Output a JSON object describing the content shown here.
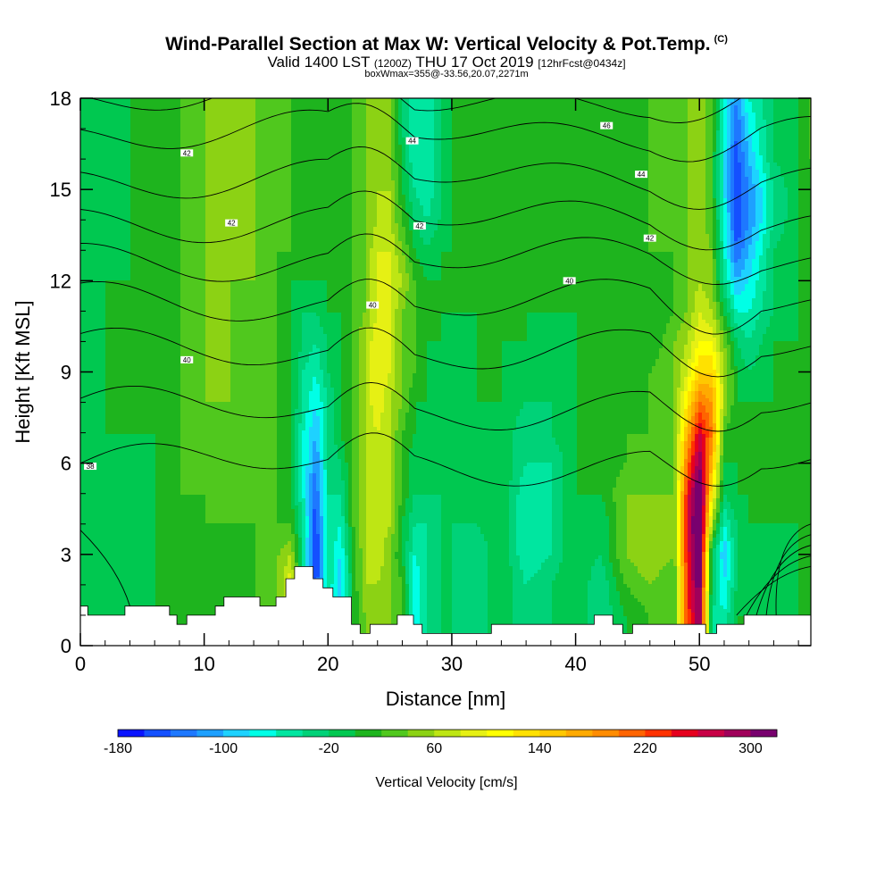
{
  "header": {
    "title": "Wind-Parallel Section at Max W: Vertical Velocity & Pot.Temp.",
    "copyright": "(C)",
    "valid_prefix": "Valid 1400 LST",
    "valid_utc": "(1200Z)",
    "valid_date": "THU 17 Oct 2019",
    "forecast": "[12hrFcst@0434z]",
    "boxmax": "boxWmax=355@-33.56,20.07,2271m"
  },
  "chart_data": {
    "type": "heatmap",
    "xlabel": "Distance [nm]",
    "ylabel": "Height [Kft MSL]",
    "xlim": [
      0,
      59
    ],
    "ylim": [
      0,
      18
    ],
    "x_ticks": [
      0,
      10,
      20,
      30,
      40,
      50
    ],
    "y_ticks": [
      0,
      3,
      6,
      9,
      12,
      15,
      18
    ],
    "colorbar": {
      "label": "Vertical Velocity [cm/s]",
      "min": -180,
      "max": 320,
      "step": 20,
      "tick_labels": [
        "-180",
        "-100",
        "-20",
        "60",
        "140",
        "220",
        "300"
      ],
      "tick_values": [
        -180,
        -100,
        -20,
        60,
        140,
        220,
        300
      ],
      "colors": [
        "#0a14ff",
        "#1450ff",
        "#1e78ff",
        "#1ea0ff",
        "#1ed2ff",
        "#00ffe6",
        "#00e6a0",
        "#00d278",
        "#00c850",
        "#1eb41e",
        "#50c81e",
        "#8cd214",
        "#bee614",
        "#e6f014",
        "#ffff00",
        "#ffe100",
        "#ffc800",
        "#ffaa00",
        "#ff8c00",
        "#ff6400",
        "#ff3200",
        "#e6001e",
        "#c80046",
        "#a0005a",
        "#78006e"
      ]
    },
    "vertical_velocity_cm_s": {
      "x_nm": [
        0,
        2,
        4,
        6,
        8,
        10,
        12,
        14,
        16,
        17,
        18,
        19,
        20,
        21,
        22,
        23,
        24,
        25,
        26,
        27,
        28,
        29,
        30,
        32,
        34,
        36,
        38,
        40,
        42,
        44,
        46,
        48,
        49,
        50,
        51,
        52,
        53,
        54,
        56,
        58,
        59
      ],
      "z_kft": [
        0,
        1,
        2,
        3,
        4,
        5,
        6,
        7,
        8,
        9,
        10,
        11,
        12,
        13,
        14,
        15,
        16,
        17,
        18
      ],
      "values": [
        [
          -20,
          0,
          -20,
          0,
          0,
          20,
          0,
          20,
          40,
          60,
          -60,
          -140,
          -40,
          -100,
          0,
          40,
          60,
          40,
          20,
          -80,
          -40,
          -20,
          -20,
          -40,
          0,
          -40,
          -20,
          0,
          -40,
          0,
          20,
          20,
          220,
          300,
          -40,
          -60,
          0,
          0,
          -20,
          0,
          0
        ],
        [
          -20,
          0,
          -20,
          0,
          0,
          20,
          0,
          20,
          40,
          60,
          -40,
          -150,
          -40,
          -100,
          0,
          40,
          60,
          40,
          20,
          -80,
          -40,
          -20,
          -20,
          -40,
          0,
          -40,
          -20,
          0,
          -40,
          0,
          20,
          20,
          220,
          300,
          -40,
          -60,
          0,
          0,
          -20,
          0,
          0
        ],
        [
          -20,
          0,
          -20,
          0,
          0,
          20,
          0,
          20,
          40,
          100,
          -40,
          -160,
          -40,
          -100,
          0,
          60,
          60,
          40,
          20,
          -80,
          -40,
          -20,
          -20,
          -40,
          0,
          -40,
          -20,
          0,
          -40,
          20,
          40,
          20,
          240,
          320,
          -20,
          -80,
          -20,
          0,
          -20,
          0,
          0
        ],
        [
          -20,
          0,
          -20,
          0,
          0,
          20,
          0,
          20,
          40,
          60,
          -40,
          -170,
          -40,
          -80,
          0,
          60,
          80,
          40,
          0,
          -60,
          -40,
          -20,
          -20,
          -40,
          0,
          -60,
          -40,
          0,
          -20,
          40,
          60,
          40,
          240,
          340,
          -20,
          -100,
          -20,
          0,
          -20,
          0,
          0
        ],
        [
          -20,
          0,
          -20,
          0,
          0,
          20,
          20,
          20,
          20,
          20,
          -40,
          -160,
          -40,
          -60,
          20,
          60,
          80,
          60,
          0,
          -40,
          -40,
          -20,
          -20,
          -20,
          0,
          -60,
          -40,
          0,
          -20,
          40,
          60,
          40,
          260,
          355,
          60,
          -60,
          -20,
          0,
          0,
          0,
          0
        ],
        [
          -20,
          0,
          -20,
          0,
          20,
          20,
          20,
          20,
          20,
          0,
          -60,
          -140,
          -40,
          -40,
          20,
          60,
          80,
          60,
          20,
          -20,
          -20,
          -20,
          -20,
          -20,
          0,
          -60,
          -40,
          0,
          0,
          40,
          40,
          40,
          240,
          340,
          120,
          -20,
          0,
          0,
          0,
          0,
          0
        ],
        [
          -20,
          0,
          -20,
          0,
          20,
          40,
          20,
          20,
          20,
          0,
          -60,
          -120,
          -40,
          -20,
          20,
          60,
          80,
          60,
          20,
          -20,
          -20,
          -20,
          -20,
          -20,
          0,
          -40,
          -40,
          0,
          0,
          20,
          20,
          40,
          200,
          300,
          160,
          0,
          0,
          0,
          0,
          0,
          0
        ],
        [
          -20,
          0,
          0,
          0,
          20,
          40,
          20,
          20,
          20,
          0,
          -60,
          -100,
          -40,
          0,
          20,
          60,
          80,
          60,
          20,
          0,
          -20,
          -20,
          -20,
          -20,
          0,
          -40,
          -20,
          0,
          0,
          20,
          20,
          40,
          160,
          260,
          200,
          20,
          0,
          0,
          0,
          0,
          0
        ],
        [
          -20,
          0,
          0,
          0,
          20,
          40,
          40,
          20,
          20,
          0,
          -40,
          -80,
          -40,
          0,
          20,
          60,
          100,
          60,
          40,
          0,
          0,
          -20,
          -20,
          0,
          0,
          -20,
          -20,
          0,
          0,
          0,
          20,
          40,
          120,
          200,
          180,
          60,
          0,
          0,
          0,
          0,
          0
        ],
        [
          -20,
          0,
          0,
          0,
          20,
          40,
          40,
          20,
          20,
          0,
          -40,
          -60,
          -20,
          0,
          20,
          60,
          100,
          80,
          40,
          20,
          0,
          -20,
          -20,
          0,
          0,
          -20,
          -20,
          0,
          0,
          0,
          20,
          40,
          80,
          140,
          140,
          60,
          0,
          -20,
          0,
          0,
          0
        ],
        [
          -20,
          0,
          0,
          0,
          20,
          40,
          40,
          20,
          20,
          0,
          -20,
          -40,
          -20,
          0,
          20,
          60,
          100,
          80,
          40,
          20,
          0,
          0,
          -20,
          0,
          0,
          0,
          -20,
          0,
          0,
          0,
          0,
          40,
          60,
          100,
          100,
          40,
          -20,
          -40,
          0,
          0,
          0
        ],
        [
          -20,
          0,
          0,
          0,
          20,
          40,
          40,
          20,
          20,
          0,
          -20,
          -20,
          0,
          0,
          20,
          40,
          80,
          80,
          40,
          20,
          0,
          0,
          0,
          0,
          0,
          0,
          0,
          0,
          0,
          0,
          0,
          20,
          40,
          80,
          60,
          0,
          -60,
          -60,
          -20,
          0,
          0
        ],
        [
          -20,
          0,
          0,
          0,
          20,
          40,
          40,
          40,
          20,
          0,
          0,
          0,
          0,
          0,
          20,
          40,
          80,
          80,
          60,
          20,
          0,
          0,
          0,
          0,
          0,
          0,
          0,
          0,
          0,
          0,
          0,
          20,
          40,
          60,
          40,
          -40,
          -100,
          -80,
          -20,
          0,
          0
        ],
        [
          -20,
          -20,
          0,
          0,
          20,
          40,
          40,
          40,
          20,
          20,
          0,
          0,
          0,
          0,
          20,
          40,
          80,
          80,
          40,
          0,
          -20,
          0,
          0,
          0,
          0,
          0,
          0,
          0,
          0,
          0,
          20,
          20,
          40,
          60,
          40,
          -60,
          -140,
          -100,
          -20,
          0,
          0
        ],
        [
          -20,
          -20,
          0,
          0,
          20,
          40,
          40,
          40,
          20,
          20,
          0,
          0,
          0,
          0,
          20,
          40,
          60,
          60,
          20,
          -20,
          -40,
          -20,
          0,
          0,
          0,
          0,
          0,
          0,
          0,
          0,
          20,
          20,
          40,
          60,
          20,
          -60,
          -160,
          -120,
          -40,
          0,
          0
        ],
        [
          -20,
          -20,
          0,
          0,
          20,
          40,
          40,
          40,
          20,
          20,
          0,
          0,
          0,
          0,
          20,
          40,
          60,
          60,
          0,
          -40,
          -60,
          -20,
          0,
          0,
          0,
          0,
          0,
          0,
          0,
          0,
          20,
          20,
          40,
          60,
          20,
          -80,
          -160,
          -120,
          -40,
          0,
          0
        ],
        [
          -20,
          -20,
          0,
          0,
          20,
          40,
          40,
          40,
          20,
          20,
          0,
          0,
          0,
          0,
          20,
          40,
          60,
          40,
          0,
          -60,
          -60,
          -20,
          0,
          20,
          0,
          0,
          0,
          0,
          0,
          0,
          20,
          20,
          40,
          60,
          20,
          -80,
          -150,
          -100,
          -20,
          0,
          20
        ],
        [
          -20,
          -20,
          0,
          0,
          20,
          40,
          40,
          40,
          20,
          20,
          0,
          0,
          0,
          0,
          20,
          40,
          60,
          40,
          -20,
          -60,
          -60,
          -20,
          0,
          20,
          0,
          0,
          0,
          0,
          0,
          0,
          20,
          20,
          40,
          60,
          20,
          -60,
          -140,
          -80,
          -20,
          0,
          20
        ],
        [
          -20,
          -20,
          0,
          0,
          20,
          40,
          40,
          40,
          20,
          20,
          0,
          0,
          0,
          0,
          20,
          40,
          60,
          40,
          -20,
          -60,
          -60,
          -20,
          0,
          20,
          0,
          0,
          0,
          0,
          0,
          0,
          20,
          20,
          40,
          60,
          20,
          -60,
          -120,
          -60,
          -20,
          0,
          20
        ]
      ]
    },
    "terrain_kft": {
      "x_nm": [
        0,
        0.6,
        3.6,
        7.2,
        7.8,
        8.6,
        9.4,
        10.9,
        11.6,
        14.5,
        15.8,
        16.6,
        17.3,
        18.8,
        19.6,
        20.4,
        21.9,
        22.6,
        23.4,
        24.8,
        25.6,
        26.9,
        27.6,
        28.4,
        30.5,
        32.5,
        33.2,
        36.4,
        38.5,
        40.5,
        41.5,
        43.0,
        43.8,
        44.6,
        46.0,
        49.8,
        50.5,
        51.4,
        52.9,
        53.6,
        59
      ],
      "z_kft": [
        1.3,
        1.0,
        1.3,
        1.0,
        0.7,
        1.0,
        1.0,
        1.3,
        1.6,
        1.3,
        1.6,
        2.2,
        2.6,
        2.2,
        1.9,
        1.6,
        0.7,
        0.4,
        0.7,
        0.7,
        1.0,
        0.7,
        0.4,
        0.4,
        0.4,
        0.4,
        0.7,
        0.7,
        0.7,
        0.7,
        1.0,
        0.7,
        0.4,
        0.7,
        0.7,
        0.7,
        0.4,
        0.7,
        0.7,
        1.0,
        1.0
      ]
    },
    "potential_temperature_C": {
      "contour_interval": 1,
      "contour_labels": [
        {
          "x_nm": 0.8,
          "z_kft": 5.9,
          "text": "38"
        },
        {
          "x_nm": 8.6,
          "z_kft": 9.4,
          "text": "40"
        },
        {
          "x_nm": 8.6,
          "z_kft": 16.2,
          "text": "42"
        },
        {
          "x_nm": 12.2,
          "z_kft": 13.9,
          "text": "42"
        },
        {
          "x_nm": 23.6,
          "z_kft": 11.2,
          "text": "40"
        },
        {
          "x_nm": 26.8,
          "z_kft": 16.6,
          "text": "44"
        },
        {
          "x_nm": 27.4,
          "z_kft": 13.8,
          "text": "42"
        },
        {
          "x_nm": 39.5,
          "z_kft": 12.0,
          "text": "40"
        },
        {
          "x_nm": 42.5,
          "z_kft": 17.1,
          "text": "46"
        },
        {
          "x_nm": 45.3,
          "z_kft": 15.5,
          "text": "44"
        },
        {
          "x_nm": 46.0,
          "z_kft": 13.4,
          "text": "42"
        }
      ]
    }
  }
}
